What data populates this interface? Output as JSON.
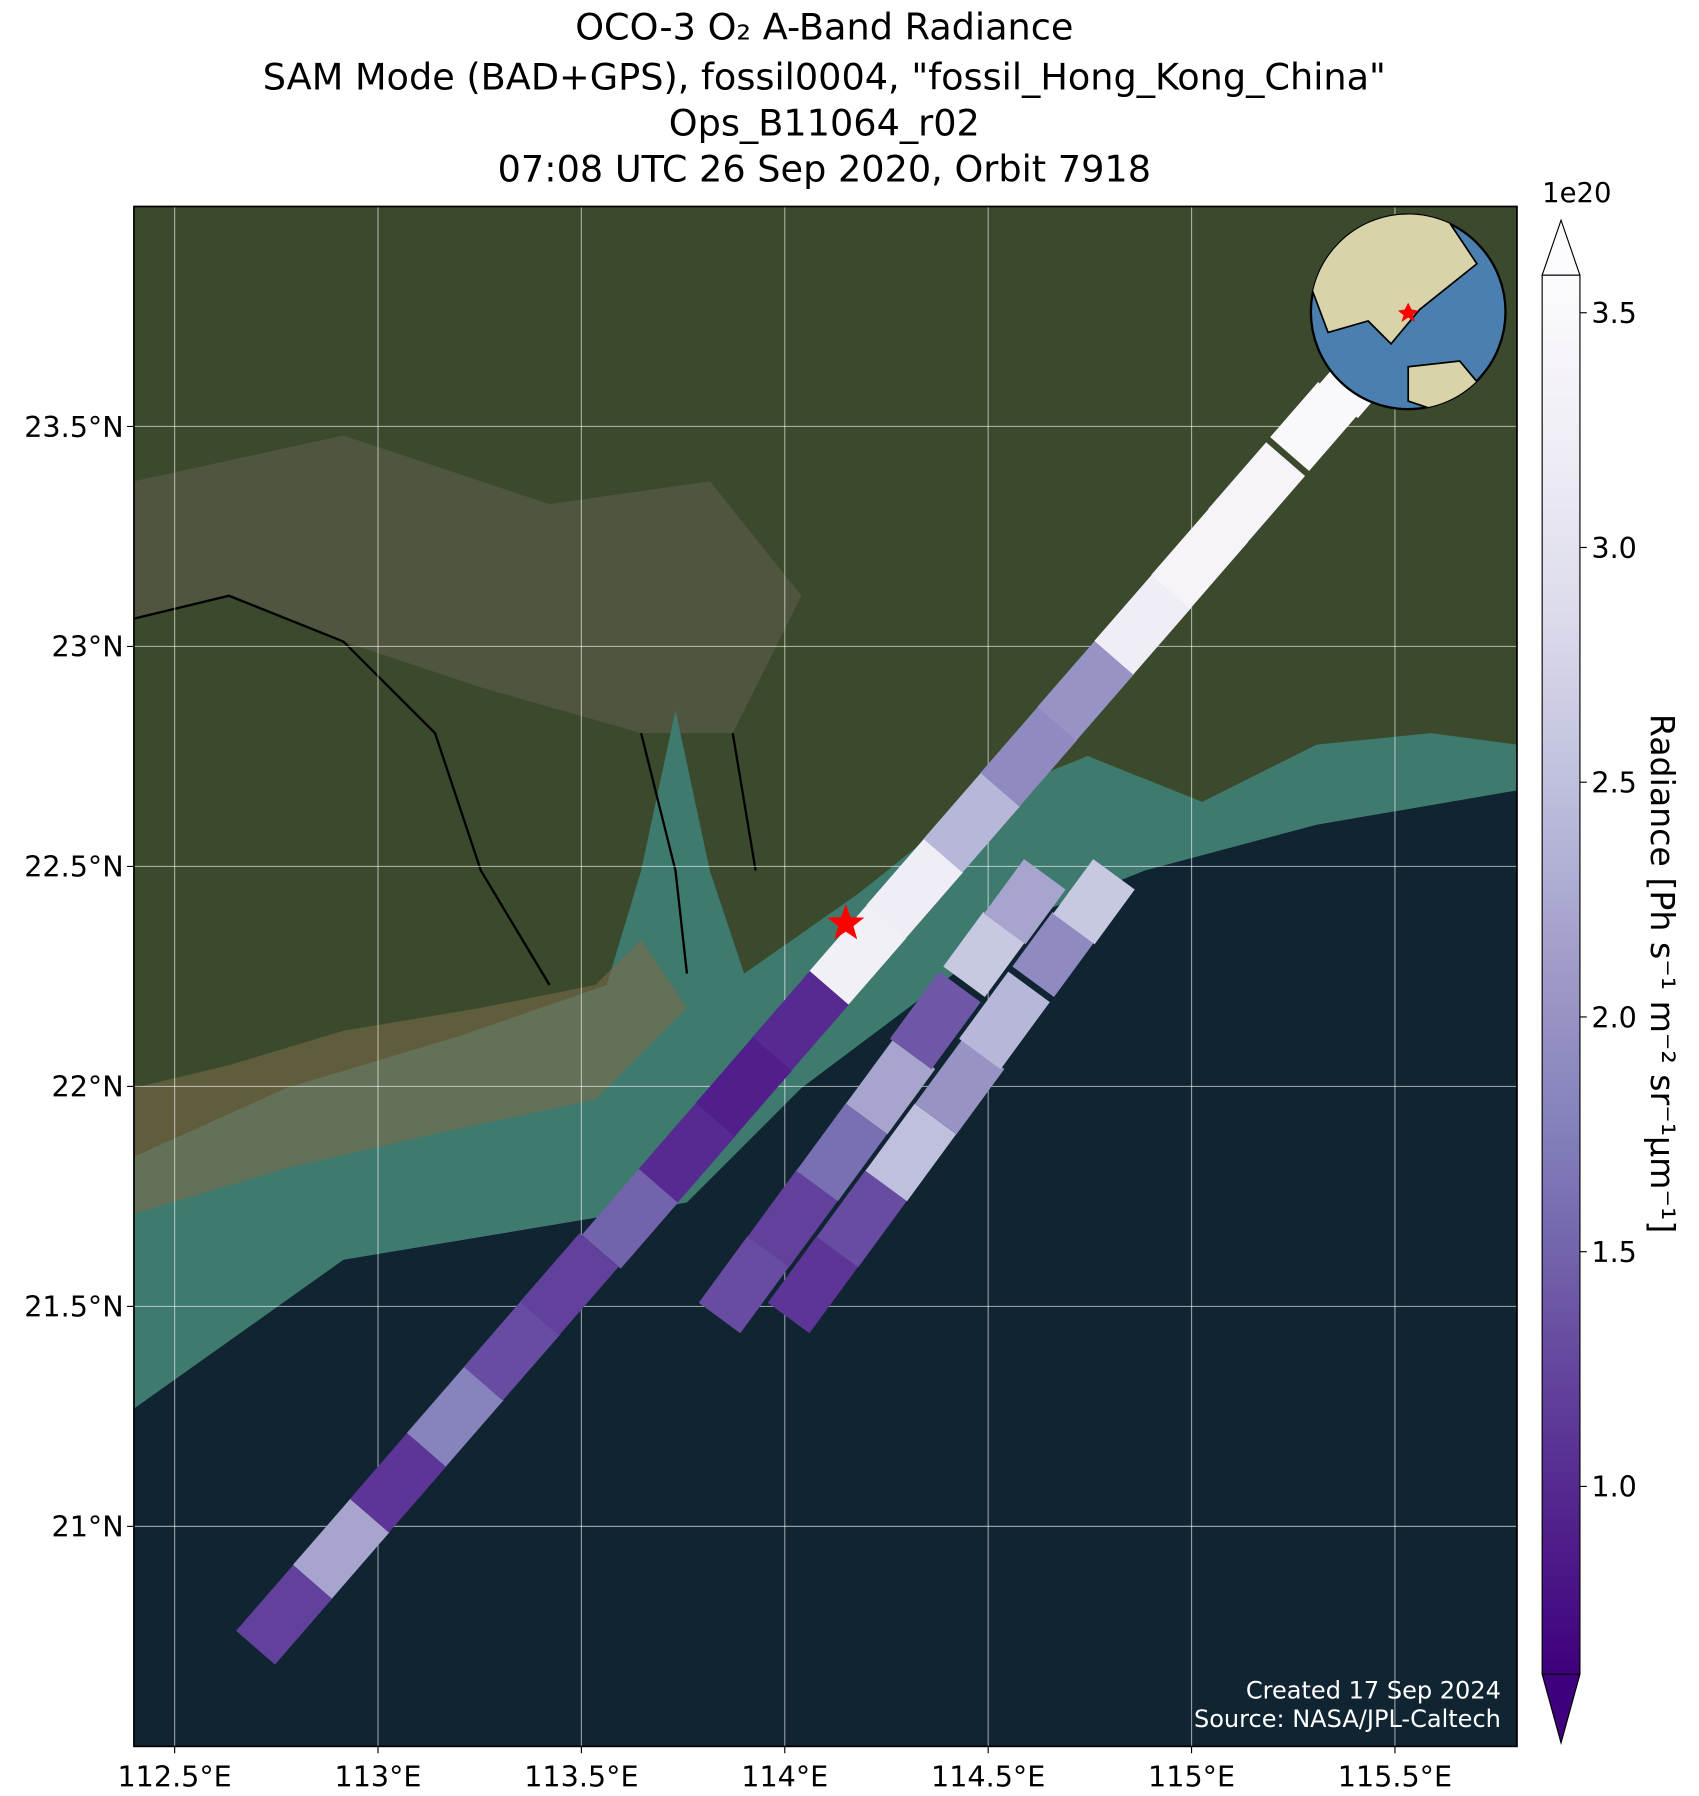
{
  "chart_data": {
    "type": "swath",
    "title": [
      "OCO-3 O₂ A-Band Radiance",
      "SAM Mode (BAD+GPS), fossil0004, \"fossil_Hong_Kong_China\"",
      "Ops_B11064_r02",
      "07:08 UTC 26 Sep 2020, Orbit 7918"
    ],
    "xlim": [
      112.4,
      115.8
    ],
    "ylim": [
      20.5,
      24.0
    ],
    "xticks": [
      {
        "value": 112.5,
        "label": "112.5°E"
      },
      {
        "value": 113,
        "label": "113°E"
      },
      {
        "value": 113.5,
        "label": "113.5°E"
      },
      {
        "value": 114,
        "label": "114°E"
      },
      {
        "value": 114.5,
        "label": "114.5°E"
      },
      {
        "value": 115,
        "label": "115°E"
      },
      {
        "value": 115.5,
        "label": "115.5°E"
      }
    ],
    "yticks": [
      {
        "value": 21,
        "label": "21°N"
      },
      {
        "value": 21.5,
        "label": "21.5°N"
      },
      {
        "value": 22,
        "label": "22°N"
      },
      {
        "value": 22.5,
        "label": "22.5°N"
      },
      {
        "value": 23,
        "label": "23°N"
      },
      {
        "value": 23.5,
        "label": "23.5°N"
      }
    ],
    "grid": true,
    "clim": [
      0.6,
      3.58
    ],
    "cticks": [
      {
        "value": 1,
        "label": "1.0"
      },
      {
        "value": 1.5,
        "label": "1.5"
      },
      {
        "value": 2,
        "label": "2.0"
      },
      {
        "value": 2.5,
        "label": "2.5"
      },
      {
        "value": 3,
        "label": "3.0"
      },
      {
        "value": 3.5,
        "label": "3.5"
      }
    ],
    "colormap": "Purples",
    "colorbar_multiplier": "1e20",
    "colorbar_label": "Radiance [Ph s⁻¹ m⁻² sr⁻¹μm⁻¹]",
    "swaths": [
      {
        "lat": [
          20.8,
          20.95,
          21.1,
          21.25,
          21.4,
          21.55,
          21.7,
          21.85,
          22.0,
          22.15,
          22.3,
          22.45,
          22.6,
          22.75,
          22.9,
          23.05,
          23.2,
          23.35,
          23.5,
          23.62
        ],
        "lon": [
          112.77,
          112.91,
          113.05,
          113.19,
          113.33,
          113.47,
          113.62,
          113.76,
          113.9,
          114.04,
          114.18,
          114.32,
          114.46,
          114.6,
          114.74,
          114.88,
          115.02,
          115.16,
          115.3,
          115.42
        ],
        "values": [
          1.2,
          2.2,
          1.1,
          1.8,
          1.3,
          1.2,
          1.5,
          1.0,
          0.9,
          1.0,
          3.3,
          3.2,
          2.4,
          1.9,
          2.0,
          3.2,
          3.4,
          3.4,
          3.5,
          3.5
        ]
      },
      {
        "lat": [
          21.55,
          21.7,
          21.85,
          22.0,
          22.15,
          22.3,
          22.42
        ],
        "lon": [
          113.9,
          114.02,
          114.14,
          114.26,
          114.37,
          114.49,
          114.59
        ],
        "values": [
          1.3,
          1.2,
          1.6,
          2.2,
          1.4,
          2.6,
          2.2
        ]
      },
      {
        "lat": [
          21.55,
          21.7,
          21.85,
          22.0,
          22.15,
          22.3,
          22.42
        ],
        "lon": [
          114.07,
          114.19,
          114.31,
          114.43,
          114.54,
          114.66,
          114.76
        ],
        "values": [
          1.1,
          1.3,
          2.5,
          2.0,
          2.4,
          1.9,
          2.6
        ]
      }
    ],
    "marker": {
      "lon": 114.15,
      "lat": 22.37,
      "color": "#ff0000"
    },
    "annotations": [
      "Created 17 Sep 2024",
      "Source: NASA/JPL-Caltech"
    ]
  }
}
